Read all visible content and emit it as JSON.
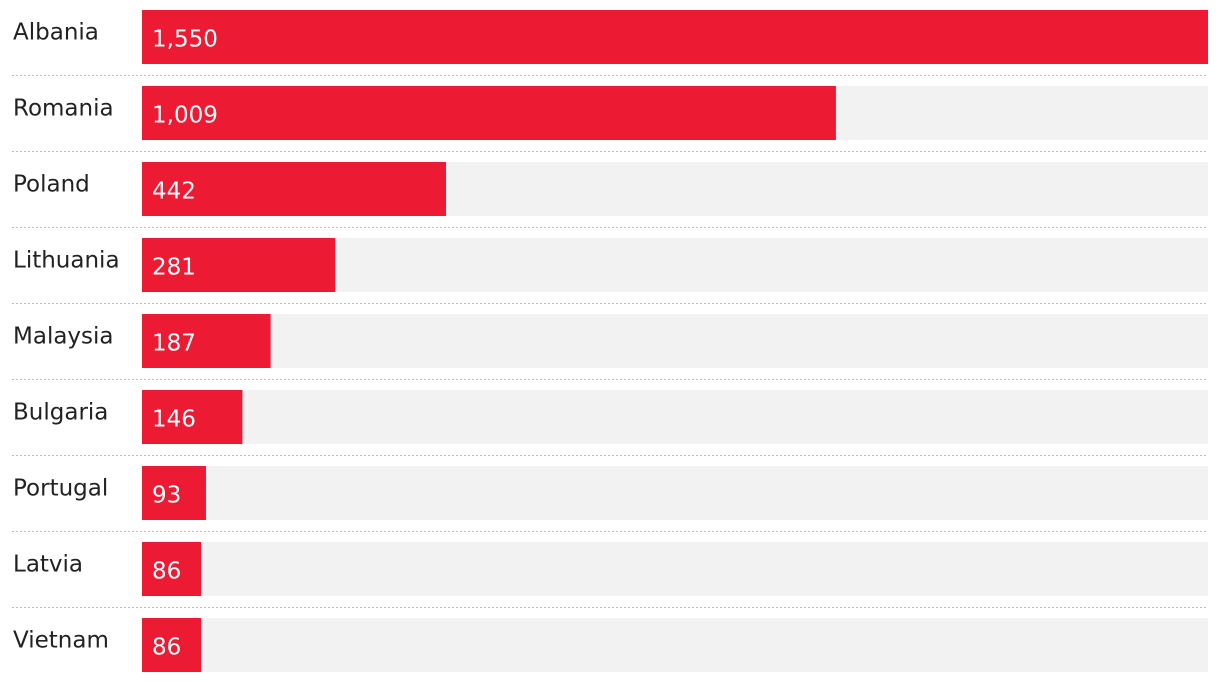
{
  "chart_data": {
    "type": "hbar",
    "categories": [
      "Albania",
      "Romania",
      "Poland",
      "Lithuania",
      "Malaysia",
      "Bulgaria",
      "Portugal",
      "Latvia",
      "Vietnam"
    ],
    "values": [
      1550,
      1009,
      442,
      281,
      187,
      146,
      93,
      86,
      86
    ],
    "value_labels": [
      "1,550",
      "1,009",
      "442",
      "281",
      "187",
      "146",
      "93",
      "86",
      "86"
    ],
    "color": "#ec1b33"
  }
}
